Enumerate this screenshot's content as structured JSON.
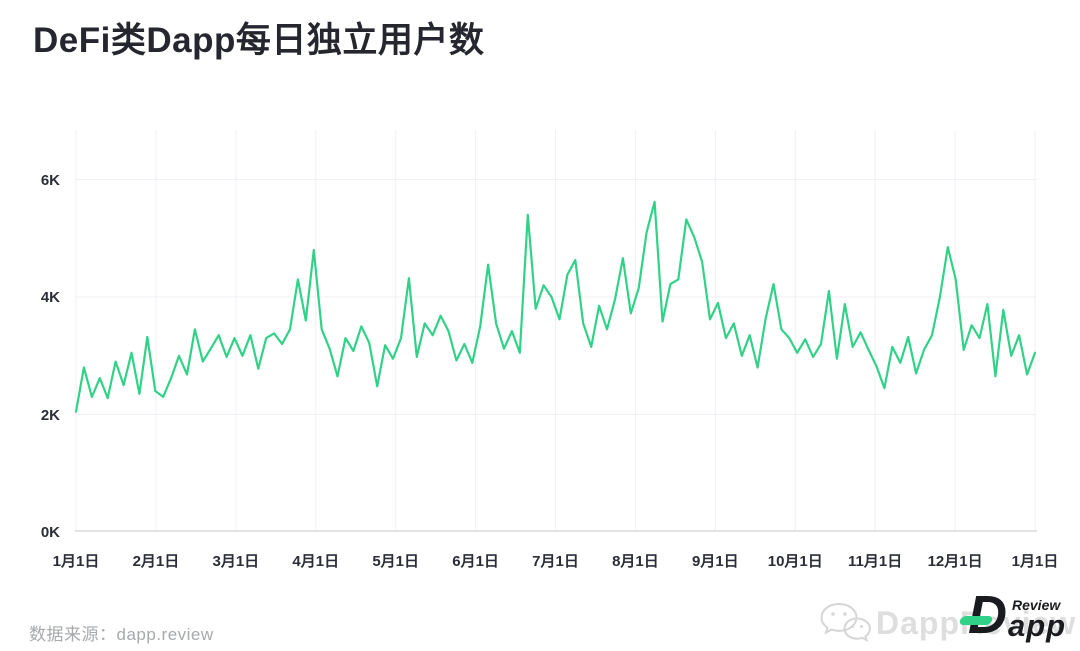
{
  "title": "DeFi类Dapp每日独立用户数",
  "source": {
    "text": "数据来源：dapp.review"
  },
  "branding": {
    "watermark": "DappReview",
    "logo_d": "D",
    "logo_app": "app",
    "logo_review": "Review",
    "wechat_icon": "wechat-icon"
  },
  "colors": {
    "line": "#31d287",
    "grid": "#f1f0f4",
    "axis": "#dcdbe0",
    "tick_label": "#2b2d37",
    "title": "#25262e",
    "source_text": "#a7a9ab",
    "watermark": "#dedede",
    "logo_dark": "#1a1b1f",
    "logo_accent": "#31d287"
  },
  "chart_data": {
    "type": "line",
    "title": "DeFi类Dapp每日独立用户数",
    "xlabel": "",
    "ylabel": "",
    "unit": "K (thousand daily unique users)",
    "x_tick_labels": [
      "1月1日",
      "2月1日",
      "3月1日",
      "4月1日",
      "5月1日",
      "6月1日",
      "7月1日",
      "8月1日",
      "9月1日",
      "10月1日",
      "11月1日",
      "12月1日",
      "1月1日"
    ],
    "y_tick_labels": [
      "0K",
      "2K",
      "4K",
      "6K"
    ],
    "y_grid_values": [
      2,
      4,
      6
    ],
    "ylim": [
      0,
      6.84
    ],
    "grid": true,
    "legend": "none",
    "series": [
      {
        "name": "DeFi Dapp 每日独立用户数",
        "sampling": "every ~3 days, Jan 1 to Jan 1",
        "values_k": [
          2.05,
          2.8,
          2.3,
          2.62,
          2.28,
          2.9,
          2.5,
          3.05,
          2.35,
          3.32,
          2.4,
          2.3,
          2.62,
          3.0,
          2.68,
          3.45,
          2.9,
          3.12,
          3.35,
          2.98,
          3.3,
          3.0,
          3.35,
          2.78,
          3.3,
          3.38,
          3.2,
          3.45,
          4.3,
          3.6,
          4.8,
          3.45,
          3.12,
          2.65,
          3.3,
          3.08,
          3.5,
          3.22,
          2.48,
          3.18,
          2.95,
          3.3,
          4.32,
          2.98,
          3.55,
          3.35,
          3.68,
          3.42,
          2.92,
          3.2,
          2.88,
          3.5,
          4.55,
          3.55,
          3.12,
          3.42,
          3.05,
          5.4,
          3.8,
          4.2,
          4.0,
          3.62,
          4.38,
          4.63,
          3.55,
          3.15,
          3.85,
          3.45,
          3.95,
          4.66,
          3.72,
          4.15,
          5.1,
          5.62,
          3.58,
          4.22,
          4.3,
          5.32,
          5.02,
          4.6,
          3.62,
          3.9,
          3.3,
          3.55,
          3.0,
          3.35,
          2.8,
          3.62,
          4.22,
          3.45,
          3.3,
          3.05,
          3.28,
          2.98,
          3.2,
          4.1,
          2.95,
          3.88,
          3.15,
          3.4,
          3.1,
          2.82,
          2.45,
          3.15,
          2.88,
          3.32,
          2.7,
          3.1,
          3.35,
          4.0,
          4.85,
          4.3,
          3.1,
          3.52,
          3.3,
          3.88,
          2.65,
          3.78,
          3.0,
          3.35,
          2.68,
          3.05
        ]
      }
    ]
  }
}
